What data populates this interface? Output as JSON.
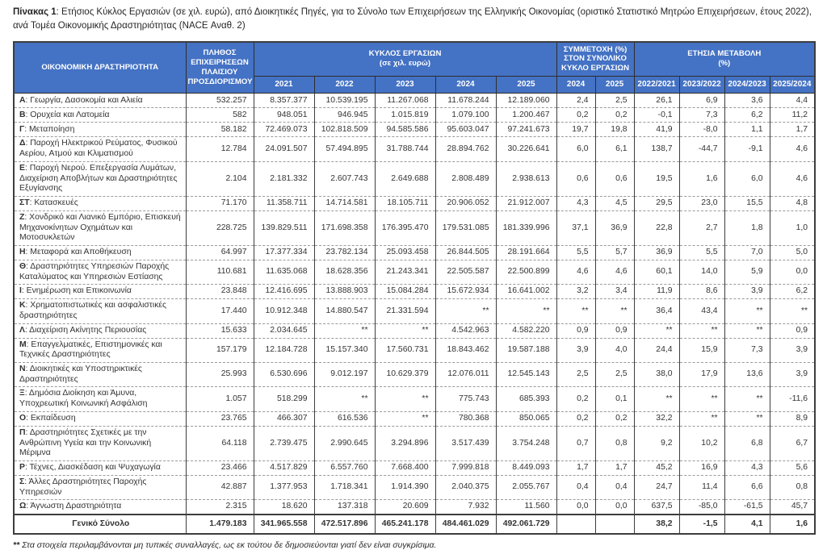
{
  "title": {
    "label": "Πίνακας 1",
    "rest": ": Ετήσιος Κύκλος Εργασιών (σε χιλ. ευρώ), από Διοικητικές Πηγές, για το Σύνολο των Επιχειρήσεων της Ελληνικής Οικονομίας (οριστικό Στατιστικό Μητρώο Επιχειρήσεων, έτους 2022), ανά Τομέα Οικονομικής Δραστηριότητας (NACE Αναθ. 2)"
  },
  "colors": {
    "header_bg": "#4472C4",
    "header_text": "#FFFFFF"
  },
  "table": {
    "headers": {
      "activity": "ΟΙΚΟΝΟΜΙΚΗ ΔΡΑΣΤΗΡΙΟΤΗΤΑ",
      "count": "ΠΛΗΘΟΣ\nΕΠΙΧΕΙΡΗΣΕΩΝ\nΠΛΑΙΣΙΟΥ\nΠΡΟΣΔΙΟΡΙΣΜΟΥ",
      "turnover_group": "ΚΥΚΛΟΣ ΕΡΓΑΣΙΩΝ\n(σε χιλ. ευρώ)",
      "participation_group": "ΣΥΜΜΕΤΟΧΗ (%)\nΣΤΟΝ ΣΥΝΟΛΙΚΟ\nΚΥΚΛΟ ΕΡΓΑΣΙΩΝ",
      "change_group": "ΕΤΗΣΙΑ ΜΕΤΑΒΟΛΗ\n(%)",
      "turnover_years": [
        "2021",
        "2022",
        "2023",
        "2024",
        "2025"
      ],
      "participation_years": [
        "2024",
        "2025"
      ],
      "change_periods": [
        "2022/2021",
        "2023/2022",
        "2024/2023",
        "2025/2024"
      ]
    },
    "rows": [
      {
        "code": "Α",
        "label": "Γεωργία, Δασοκομία και Αλιεία",
        "cells": [
          "532.257",
          "8.357.377",
          "10.539.195",
          "11.267.068",
          "11.678.244",
          "12.189.060",
          "2,4",
          "2,5",
          "26,1",
          "6,9",
          "3,6",
          "4,4"
        ]
      },
      {
        "code": "Β",
        "label": "Ορυχεία και Λατομεία",
        "cells": [
          "582",
          "948.051",
          "946.945",
          "1.015.819",
          "1.079.100",
          "1.200.467",
          "0,2",
          "0,2",
          "-0,1",
          "7,3",
          "6,2",
          "11,2"
        ]
      },
      {
        "code": "Γ",
        "label": "Μεταποίηση",
        "cells": [
          "58.182",
          "72.469.073",
          "102.818.509",
          "94.585.586",
          "95.603.047",
          "97.241.673",
          "19,7",
          "19,8",
          "41,9",
          "-8,0",
          "1,1",
          "1,7"
        ]
      },
      {
        "code": "Δ",
        "label": "Παροχή Ηλεκτρικού Ρεύματος, Φυσικού Αερίου, Ατμού και Κλιματισμού",
        "cells": [
          "12.784",
          "24.091.507",
          "57.494.895",
          "31.788.744",
          "28.894.762",
          "30.226.641",
          "6,0",
          "6,1",
          "138,7",
          "-44,7",
          "-9,1",
          "4,6"
        ]
      },
      {
        "code": "Ε",
        "label": "Παροχή Νερού. Επεξεργασία Λυμάτων, Διαχείριση Αποβλήτων και Δραστηριότητες Εξυγίανσης",
        "cells": [
          "2.104",
          "2.181.332",
          "2.607.743",
          "2.649.688",
          "2.808.489",
          "2.938.613",
          "0,6",
          "0,6",
          "19,5",
          "1,6",
          "6,0",
          "4,6"
        ]
      },
      {
        "code": "ΣΤ",
        "label": "Κατασκευές",
        "cells": [
          "71.170",
          "11.358.711",
          "14.714.581",
          "18.105.711",
          "20.906.052",
          "21.912.007",
          "4,3",
          "4,5",
          "29,5",
          "23,0",
          "15,5",
          "4,8"
        ]
      },
      {
        "code": "Ζ",
        "label": "Χονδρικό και Λιανικό Εμπόριο, Επισκευή Μηχανοκίνητων Οχημάτων και Μοτοσυκλετών",
        "cells": [
          "228.725",
          "139.829.511",
          "171.698.358",
          "176.395.470",
          "179.531.085",
          "181.339.996",
          "37,1",
          "36,9",
          "22,8",
          "2,7",
          "1,8",
          "1,0"
        ]
      },
      {
        "code": "Η",
        "label": "Μεταφορά και Αποθήκευση",
        "cells": [
          "64.997",
          "17.377.334",
          "23.782.134",
          "25.093.458",
          "26.844.505",
          "28.191.664",
          "5,5",
          "5,7",
          "36,9",
          "5,5",
          "7,0",
          "5,0"
        ]
      },
      {
        "code": "Θ",
        "label": "Δραστηριότητες Υπηρεσιών Παροχής Καταλύματος και Υπηρεσιών Εστίασης",
        "cells": [
          "110.681",
          "11.635.068",
          "18.628.356",
          "21.243.341",
          "22.505.587",
          "22.500.899",
          "4,6",
          "4,6",
          "60,1",
          "14,0",
          "5,9",
          "0,0"
        ]
      },
      {
        "code": "Ι",
        "label": "Ενημέρωση και Επικοινωνία",
        "cells": [
          "23.848",
          "12.416.695",
          "13.888.903",
          "15.084.284",
          "15.672.934",
          "16.641.002",
          "3,2",
          "3,4",
          "11,9",
          "8,6",
          "3,9",
          "6,2"
        ]
      },
      {
        "code": "Κ",
        "label": "Χρηματοπιστωτικές και ασφαλιστικές δραστηριότητες",
        "cells": [
          "17.440",
          "10.912.348",
          "14.880.547",
          "21.331.594",
          "**",
          "**",
          "**",
          "**",
          "36,4",
          "43,4",
          "**",
          "**"
        ]
      },
      {
        "code": "Λ",
        "label": "Διαχείριση Ακίνητης Περιουσίας",
        "cells": [
          "15.633",
          "2.034.645",
          "**",
          "**",
          "4.542.963",
          "4.582.220",
          "0,9",
          "0,9",
          "**",
          "**",
          "**",
          "0,9"
        ]
      },
      {
        "code": "Μ",
        "label": "Επαγγελματικές, Επιστημονικές και Τεχνικές Δραστηριότητες",
        "cells": [
          "157.179",
          "12.184.728",
          "15.157.340",
          "17.560.731",
          "18.843.462",
          "19.587.188",
          "3,9",
          "4,0",
          "24,4",
          "15,9",
          "7,3",
          "3,9"
        ]
      },
      {
        "code": "Ν",
        "label": "Διοικητικές και Υποστηρικτικές Δραστηριότητες",
        "cells": [
          "25.993",
          "6.530.696",
          "9.012.197",
          "10.629.379",
          "12.076.011",
          "12.545.143",
          "2,5",
          "2,5",
          "38,0",
          "17,9",
          "13,6",
          "3,9"
        ]
      },
      {
        "code": "Ξ",
        "label": "Δημόσια Διοίκηση και Άμυνα, Υποχρεωτική Κοινωνική Ασφάλιση",
        "cells": [
          "1.057",
          "518.299",
          "**",
          "**",
          "775.743",
          "685.393",
          "0,2",
          "0,1",
          "**",
          "**",
          "**",
          "-11,6"
        ]
      },
      {
        "code": "Ο",
        "label": "Εκπαίδευση",
        "cells": [
          "23.765",
          "466.307",
          "616.536",
          "**",
          "780.368",
          "850.065",
          "0,2",
          "0,2",
          "32,2",
          "**",
          "**",
          "8,9"
        ]
      },
      {
        "code": "Π",
        "label": "Δραστηριότητες Σχετικές με την Ανθρώπινη Υγεία και την Κοινωνική Μέριμνα",
        "cells": [
          "64.118",
          "2.739.475",
          "2.990.645",
          "3.294.896",
          "3.517.439",
          "3.754.248",
          "0,7",
          "0,8",
          "9,2",
          "10,2",
          "6,8",
          "6,7"
        ]
      },
      {
        "code": "Ρ",
        "label": "Τέχνες, Διασκέδαση και Ψυχαγωγία",
        "cells": [
          "23.466",
          "4.517.829",
          "6.557.760",
          "7.668.400",
          "7.999.818",
          "8.449.093",
          "1,7",
          "1,7",
          "45,2",
          "16,9",
          "4,3",
          "5,6"
        ]
      },
      {
        "code": "Σ",
        "label": "Άλλες Δραστηριότητες Παροχής Υπηρεσιών",
        "cells": [
          "42.887",
          "1.377.953",
          "1.718.341",
          "1.914.390",
          "2.040.375",
          "2.055.767",
          "0,4",
          "0,4",
          "24,7",
          "11,4",
          "6,6",
          "0,8"
        ]
      },
      {
        "code": "Ω",
        "label": "Άγνωστη Δραστηριότητα",
        "cells": [
          "2.315",
          "18.620",
          "137.318",
          "20.609",
          "7.932",
          "11.560",
          "0,0",
          "0,0",
          "637,5",
          "-85,0",
          "-61,5",
          "45,7"
        ]
      }
    ],
    "total": {
      "label": "Γενικό Σύνολο",
      "cells": [
        "1.479.183",
        "341.965.558",
        "472.517.896",
        "465.241.178",
        "484.461.029",
        "492.061.729",
        "",
        "",
        "38,2",
        "-1,5",
        "4,1",
        "1,6"
      ]
    }
  },
  "footnote": {
    "marker": "**",
    "text": " Στα στοιχεία περιλαμβάνονται μη τυπικές συναλλαγές, ως εκ τούτου δε δημοσιεύονται γιατί δεν είναι συγκρίσιμα."
  }
}
